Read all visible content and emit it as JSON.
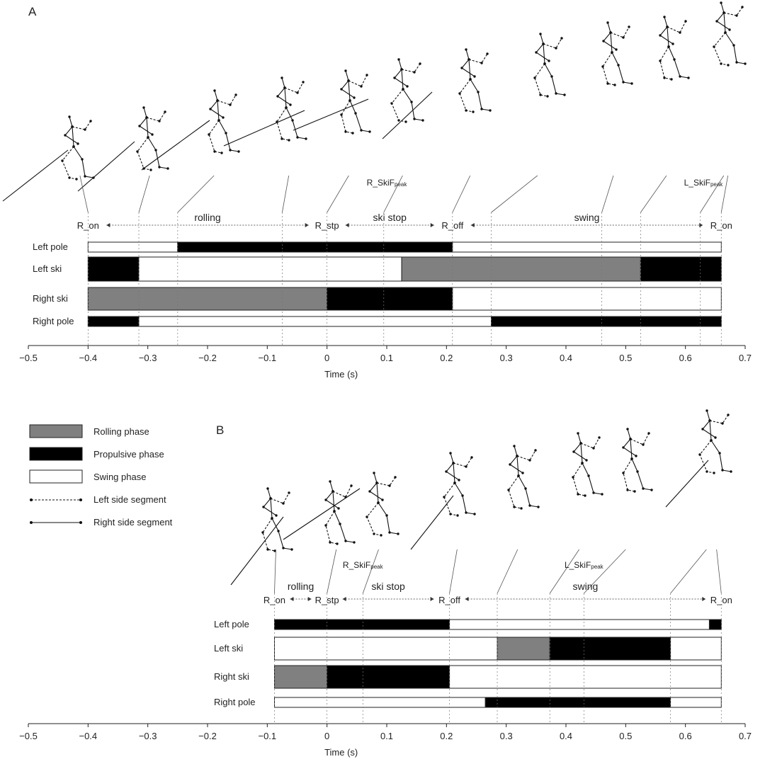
{
  "colors": {
    "rolling": "#808080",
    "propulsive": "#000000",
    "swing": "#ffffff",
    "stroke": "#222222"
  },
  "legend": {
    "items": [
      {
        "kind": "box",
        "fill": "#808080",
        "label": "Rolling phase"
      },
      {
        "kind": "box",
        "fill": "#000000",
        "label": "Propulsive phase"
      },
      {
        "kind": "box",
        "fill": "#ffffff",
        "label": "Swing phase"
      },
      {
        "kind": "line",
        "dash": true,
        "label": "Left side segment"
      },
      {
        "kind": "line",
        "dash": false,
        "label": "Right side segment"
      }
    ]
  },
  "panels": [
    {
      "label": "A",
      "xlabel": "Time (s)",
      "xlim": [
        -0.5,
        0.7
      ],
      "ticks": [
        "-0.5",
        "-0.4",
        "-0.3",
        "-0.2",
        "-0.1",
        "0",
        "0.1",
        "0.2",
        "0.3",
        "0.4",
        "0.5",
        "0.6",
        "0.7"
      ],
      "events": [
        {
          "label": "R_on",
          "t": -0.4
        },
        {
          "label": "R_stp",
          "t": 0.0
        },
        {
          "label": "R_off",
          "t": 0.21
        },
        {
          "label": "R_on",
          "t": 0.66
        }
      ],
      "phases": [
        {
          "label": "rolling",
          "from": -0.4,
          "to": 0.0
        },
        {
          "label": "ski stop",
          "from": 0.0,
          "to": 0.21
        },
        {
          "label": "swing",
          "from": 0.21,
          "to": 0.66
        }
      ],
      "peaks": [
        {
          "base": "R_SkiF",
          "sub": "peak",
          "t": 0.1
        },
        {
          "base": "L_SkiF",
          "sub": "peak",
          "t": 0.63
        }
      ],
      "guides": [
        -0.4,
        -0.315,
        -0.25,
        -0.075,
        0.0,
        0.095,
        0.21,
        0.275,
        0.46,
        0.525,
        0.625,
        0.66
      ],
      "rows": [
        {
          "label": "Left pole",
          "segments": [
            {
              "from": -0.4,
              "to": -0.25,
              "phase": "swing"
            },
            {
              "from": -0.25,
              "to": 0.21,
              "phase": "propulsive"
            },
            {
              "from": 0.21,
              "to": 0.66,
              "phase": "swing"
            }
          ]
        },
        {
          "label": "Left ski",
          "segments": [
            {
              "from": -0.4,
              "to": -0.315,
              "phase": "propulsive"
            },
            {
              "from": -0.315,
              "to": 0.125,
              "phase": "swing"
            },
            {
              "from": 0.125,
              "to": 0.525,
              "phase": "rolling"
            },
            {
              "from": 0.525,
              "to": 0.66,
              "phase": "propulsive"
            }
          ]
        },
        {
          "label": "Right ski",
          "segments": [
            {
              "from": -0.4,
              "to": 0.0,
              "phase": "rolling"
            },
            {
              "from": 0.0,
              "to": 0.21,
              "phase": "propulsive"
            },
            {
              "from": 0.21,
              "to": 0.66,
              "phase": "swing"
            }
          ]
        },
        {
          "label": "Right pole",
          "segments": [
            {
              "from": -0.4,
              "to": -0.315,
              "phase": "propulsive"
            },
            {
              "from": -0.315,
              "to": 0.275,
              "phase": "swing"
            },
            {
              "from": 0.275,
              "to": 0.66,
              "phase": "propulsive"
            }
          ]
        }
      ]
    },
    {
      "label": "B",
      "xlabel": "Time (s)",
      "xlim": [
        -0.5,
        0.7
      ],
      "ticks": [
        "-0.5",
        "-0.4",
        "-0.3",
        "-0.2",
        "-0.1",
        "0",
        "0.1",
        "0.2",
        "0.3",
        "0.4",
        "0.5",
        "0.6",
        "0.7"
      ],
      "events": [
        {
          "label": "R_on",
          "t": -0.088
        },
        {
          "label": "R_stp",
          "t": 0.0
        },
        {
          "label": "R_off",
          "t": 0.205
        },
        {
          "label": "R_on",
          "t": 0.66
        }
      ],
      "phases": [
        {
          "label": "rolling",
          "from": -0.088,
          "to": 0.0
        },
        {
          "label": "ski stop",
          "from": 0.0,
          "to": 0.205
        },
        {
          "label": "swing",
          "from": 0.205,
          "to": 0.66
        }
      ],
      "peaks": [
        {
          "base": "R_SkiF",
          "sub": "peak",
          "t": 0.06
        },
        {
          "base": "L_SkiF",
          "sub": "peak",
          "t": 0.43
        }
      ],
      "guides": [
        -0.088,
        0.0,
        0.06,
        0.205,
        0.285,
        0.373,
        0.43,
        0.575,
        0.66
      ],
      "rows": [
        {
          "label": "Left pole",
          "segments": [
            {
              "from": -0.088,
              "to": 0.205,
              "phase": "propulsive"
            },
            {
              "from": 0.205,
              "to": 0.64,
              "phase": "swing"
            },
            {
              "from": 0.64,
              "to": 0.66,
              "phase": "propulsive"
            }
          ]
        },
        {
          "label": "Left ski",
          "segments": [
            {
              "from": -0.088,
              "to": 0.285,
              "phase": "swing"
            },
            {
              "from": 0.285,
              "to": 0.373,
              "phase": "rolling"
            },
            {
              "from": 0.373,
              "to": 0.575,
              "phase": "propulsive"
            },
            {
              "from": 0.575,
              "to": 0.66,
              "phase": "swing"
            }
          ]
        },
        {
          "label": "Right ski",
          "segments": [
            {
              "from": -0.088,
              "to": 0.0,
              "phase": "rolling"
            },
            {
              "from": 0.0,
              "to": 0.205,
              "phase": "propulsive"
            },
            {
              "from": 0.205,
              "to": 0.66,
              "phase": "swing"
            }
          ]
        },
        {
          "label": "Right pole",
          "segments": [
            {
              "from": -0.088,
              "to": 0.265,
              "phase": "swing"
            },
            {
              "from": 0.265,
              "to": 0.575,
              "phase": "propulsive"
            },
            {
              "from": 0.575,
              "to": 0.66,
              "phase": "swing"
            }
          ]
        }
      ]
    }
  ]
}
